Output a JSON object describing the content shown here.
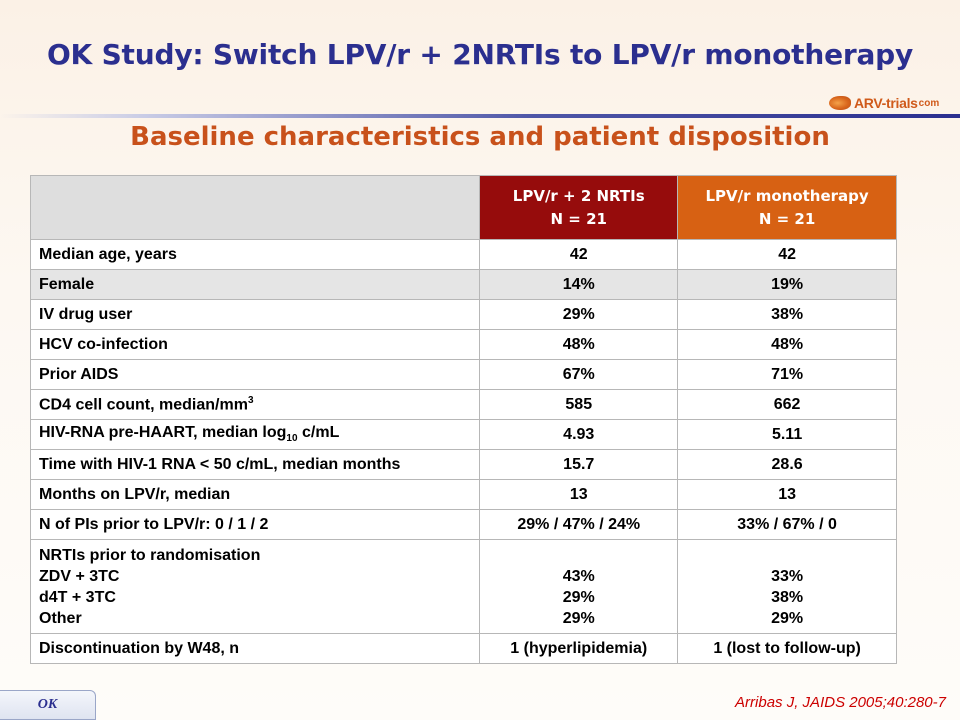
{
  "slide": {
    "title": "OK Study: Switch LPV/r + 2NRTIs to LPV/r monotherapy",
    "subtitle": "Baseline characteristics and patient disposition",
    "logo": {
      "text": "ARV-trials",
      "suffix": "com"
    },
    "tab_label": "OK",
    "citation": "Arribas J, JAIDS 2005;40:280-7"
  },
  "table": {
    "headers": [
      {
        "line1": "LPV/r + 2 NRTIs",
        "line2": "N = 21"
      },
      {
        "line1": "LPV/r monotherapy",
        "line2": "N = 21"
      }
    ],
    "rows": [
      {
        "label": "Median age, years",
        "a": "42",
        "b": "42"
      },
      {
        "label": "Female",
        "a": "14%",
        "b": "19%"
      },
      {
        "label": "IV drug user",
        "a": "29%",
        "b": "38%"
      },
      {
        "label": "HCV co-infection",
        "a": "48%",
        "b": "48%"
      },
      {
        "label": "Prior AIDS",
        "a": "67%",
        "b": "71%"
      },
      {
        "label": "CD4 cell count, median/mm",
        "sup": "3",
        "a": "585",
        "b": "662"
      },
      {
        "label": "HIV-RNA pre-HAART, median log",
        "sub": "10",
        "label_tail": " c/mL",
        "a": "4.93",
        "b": "5.11"
      },
      {
        "label": "Time with HIV-1 RNA < 50 c/mL, median months",
        "a": "15.7",
        "b": "28.6"
      },
      {
        "label": "Months on LPV/r, median",
        "a": "13",
        "b": "13"
      },
      {
        "label": "N of PIs prior to LPV/r: 0 / 1 / 2",
        "a": "29% / 47% / 24%",
        "b": "33% / 67% / 0"
      },
      {
        "label": "NRTIs prior to randomisation\nZDV + 3TC\nd4T + 3TC\nOther",
        "a": "\n43%\n29%\n29%",
        "b": "\n33%\n38%\n29%"
      },
      {
        "label": "Discontinuation by W48, n",
        "a": "1 (hyperlipidemia)",
        "b": "1 (lost to follow-up)"
      }
    ]
  }
}
